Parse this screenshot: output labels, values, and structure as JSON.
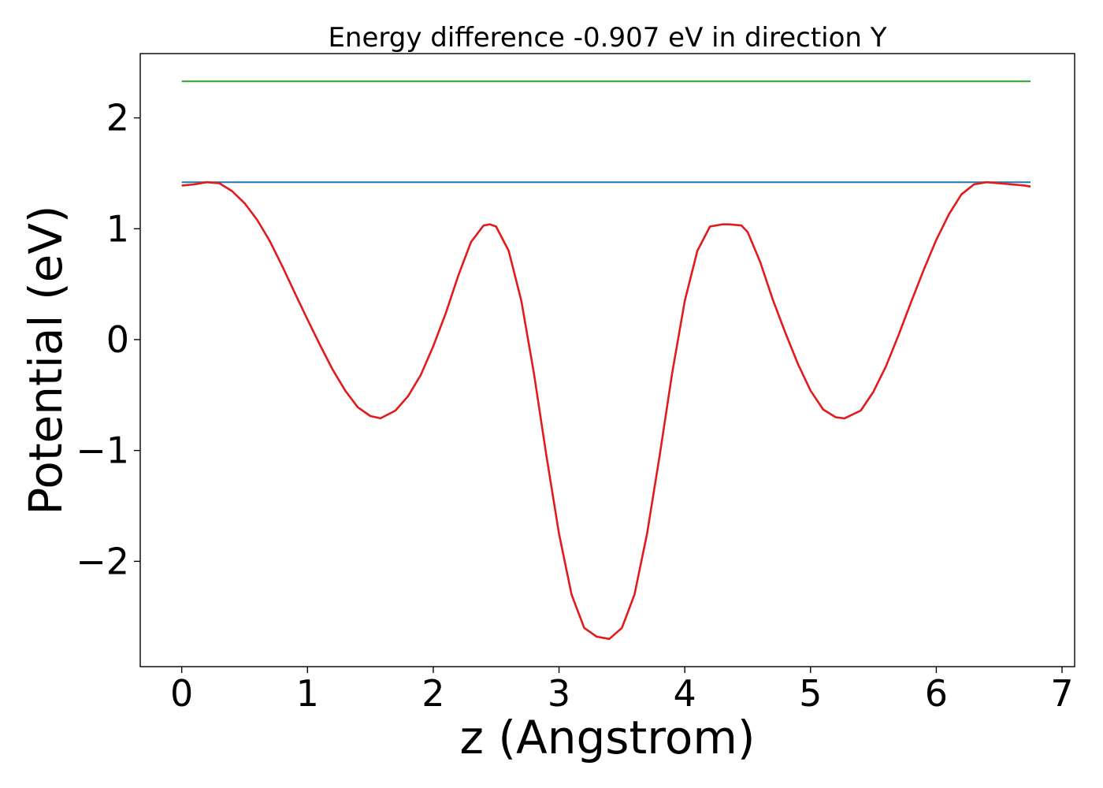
{
  "chart_data": {
    "type": "line",
    "title": "Energy difference -0.907 eV in direction Y",
    "xlabel": "z (Angstrom)",
    "ylabel": "Potential (eV)",
    "xlim": [
      -0.33,
      7.1
    ],
    "ylim": [
      -2.95,
      2.58
    ],
    "xticks": [
      0,
      1,
      2,
      3,
      4,
      5,
      6,
      7
    ],
    "xtick_labels": [
      "0",
      "1",
      "2",
      "3",
      "4",
      "5",
      "6",
      "7"
    ],
    "yticks": [
      -2,
      -1,
      0,
      1,
      2
    ],
    "ytick_labels": [
      "−2",
      "−1",
      "0",
      "1",
      "2"
    ],
    "grid": false,
    "legend": "none",
    "series": [
      {
        "color": "#2ca02c",
        "x": [
          0,
          6.75
        ],
        "y": [
          2.33,
          2.33
        ]
      },
      {
        "color": "#1f77b4",
        "x": [
          0,
          6.75
        ],
        "y": [
          1.42,
          1.42
        ]
      },
      {
        "color": "#e31a1c",
        "x": [
          0,
          0.1,
          0.2,
          0.3,
          0.4,
          0.5,
          0.6,
          0.7,
          0.8,
          0.9,
          1.0,
          1.1,
          1.2,
          1.3,
          1.4,
          1.5,
          1.58,
          1.7,
          1.8,
          1.9,
          2.0,
          2.1,
          2.2,
          2.3,
          2.4,
          2.45,
          2.5,
          2.6,
          2.7,
          2.8,
          2.9,
          3.0,
          3.1,
          3.2,
          3.3,
          3.4,
          3.5,
          3.6,
          3.7,
          3.8,
          3.9,
          4.0,
          4.1,
          4.2,
          4.3,
          4.35,
          4.45,
          4.5,
          4.6,
          4.7,
          4.8,
          4.9,
          5.0,
          5.1,
          5.2,
          5.27,
          5.4,
          5.5,
          5.6,
          5.7,
          5.8,
          5.9,
          6.0,
          6.1,
          6.2,
          6.3,
          6.4,
          6.5,
          6.6,
          6.7,
          6.75
        ],
        "y": [
          1.39,
          1.4,
          1.42,
          1.41,
          1.34,
          1.23,
          1.08,
          0.89,
          0.66,
          0.42,
          0.18,
          -0.05,
          -0.27,
          -0.46,
          -0.61,
          -0.69,
          -0.71,
          -0.64,
          -0.51,
          -0.32,
          -0.06,
          0.24,
          0.58,
          0.88,
          1.03,
          1.04,
          1.02,
          0.8,
          0.35,
          -0.3,
          -1.05,
          -1.75,
          -2.3,
          -2.6,
          -2.68,
          -2.7,
          -2.6,
          -2.3,
          -1.75,
          -1.05,
          -0.3,
          0.35,
          0.8,
          1.02,
          1.04,
          1.04,
          1.03,
          0.97,
          0.7,
          0.36,
          0.06,
          -0.22,
          -0.46,
          -0.63,
          -0.7,
          -0.71,
          -0.64,
          -0.47,
          -0.24,
          0.04,
          0.34,
          0.63,
          0.9,
          1.13,
          1.31,
          1.4,
          1.42,
          1.41,
          1.4,
          1.39,
          1.38
        ]
      }
    ]
  }
}
